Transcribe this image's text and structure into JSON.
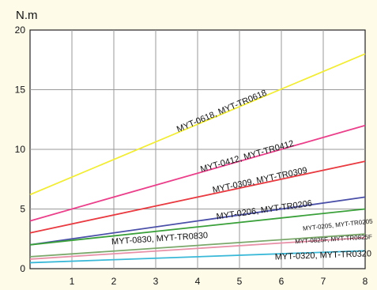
{
  "chart_data": {
    "type": "line",
    "title": "",
    "ylabel": "N.m",
    "xlabel": "",
    "xlim": [
      0,
      8
    ],
    "ylim": [
      0,
      20
    ],
    "x_ticks": [
      1,
      2,
      3,
      4,
      5,
      6,
      7,
      8
    ],
    "y_ticks": [
      0,
      5,
      10,
      15,
      20
    ],
    "grid": true,
    "legend": "none",
    "series": [
      {
        "name": "MYT-0618, MYT-TR0618",
        "color": "#f2ec3a",
        "x": [
          0,
          8
        ],
        "y": [
          6.2,
          18.0
        ],
        "label_at": {
          "x": 4.6,
          "y": 13.0
        },
        "label_size": 11
      },
      {
        "name": "MYT-0412, MYT-TR0412",
        "color": "#ea3f8a",
        "x": [
          0,
          8
        ],
        "y": [
          4.0,
          12.0
        ],
        "label_at": {
          "x": 5.2,
          "y": 9.2
        },
        "label_size": 11
      },
      {
        "name": "MYT-0309, MYT-TR0309",
        "color": "#e83a40",
        "x": [
          0,
          8
        ],
        "y": [
          3.0,
          9.0
        ],
        "label_at": {
          "x": 5.5,
          "y": 7.2
        },
        "label_size": 11
      },
      {
        "name": "MYT-0206, MYT-TR0206",
        "color": "#4a4fa8",
        "x": [
          0,
          8
        ],
        "y": [
          2.0,
          6.0
        ],
        "label_at": {
          "x": 5.6,
          "y": 4.7
        },
        "label_size": 11
      },
      {
        "name": "MYT-0205, MYT-TR0205",
        "color": "#3aa03a",
        "x": [
          0,
          8
        ],
        "y": [
          2.0,
          5.0
        ],
        "label_at": {
          "x": 7.35,
          "y": 3.5
        },
        "label_size": 8
      },
      {
        "name": "MYT-0830, MYT-TR0830",
        "color": "#7aa86a",
        "x": [
          0,
          8
        ],
        "y": [
          1.0,
          2.9
        ],
        "label_at": {
          "x": 3.1,
          "y": 2.3
        },
        "label_size": 11
      },
      {
        "name": "MYT-0825F, MYT-TR0825F",
        "color": "#e890a8",
        "x": [
          0,
          8
        ],
        "y": [
          0.8,
          2.6
        ],
        "label_at": {
          "x": 7.25,
          "y": 2.3
        },
        "label_size": 8
      },
      {
        "name": "MYT-0320, MYT-TR0320",
        "color": "#3ab8d8",
        "x": [
          0,
          8
        ],
        "y": [
          0.5,
          1.5
        ],
        "label_at": {
          "x": 7.0,
          "y": 0.9
        },
        "label_size": 11
      }
    ]
  }
}
